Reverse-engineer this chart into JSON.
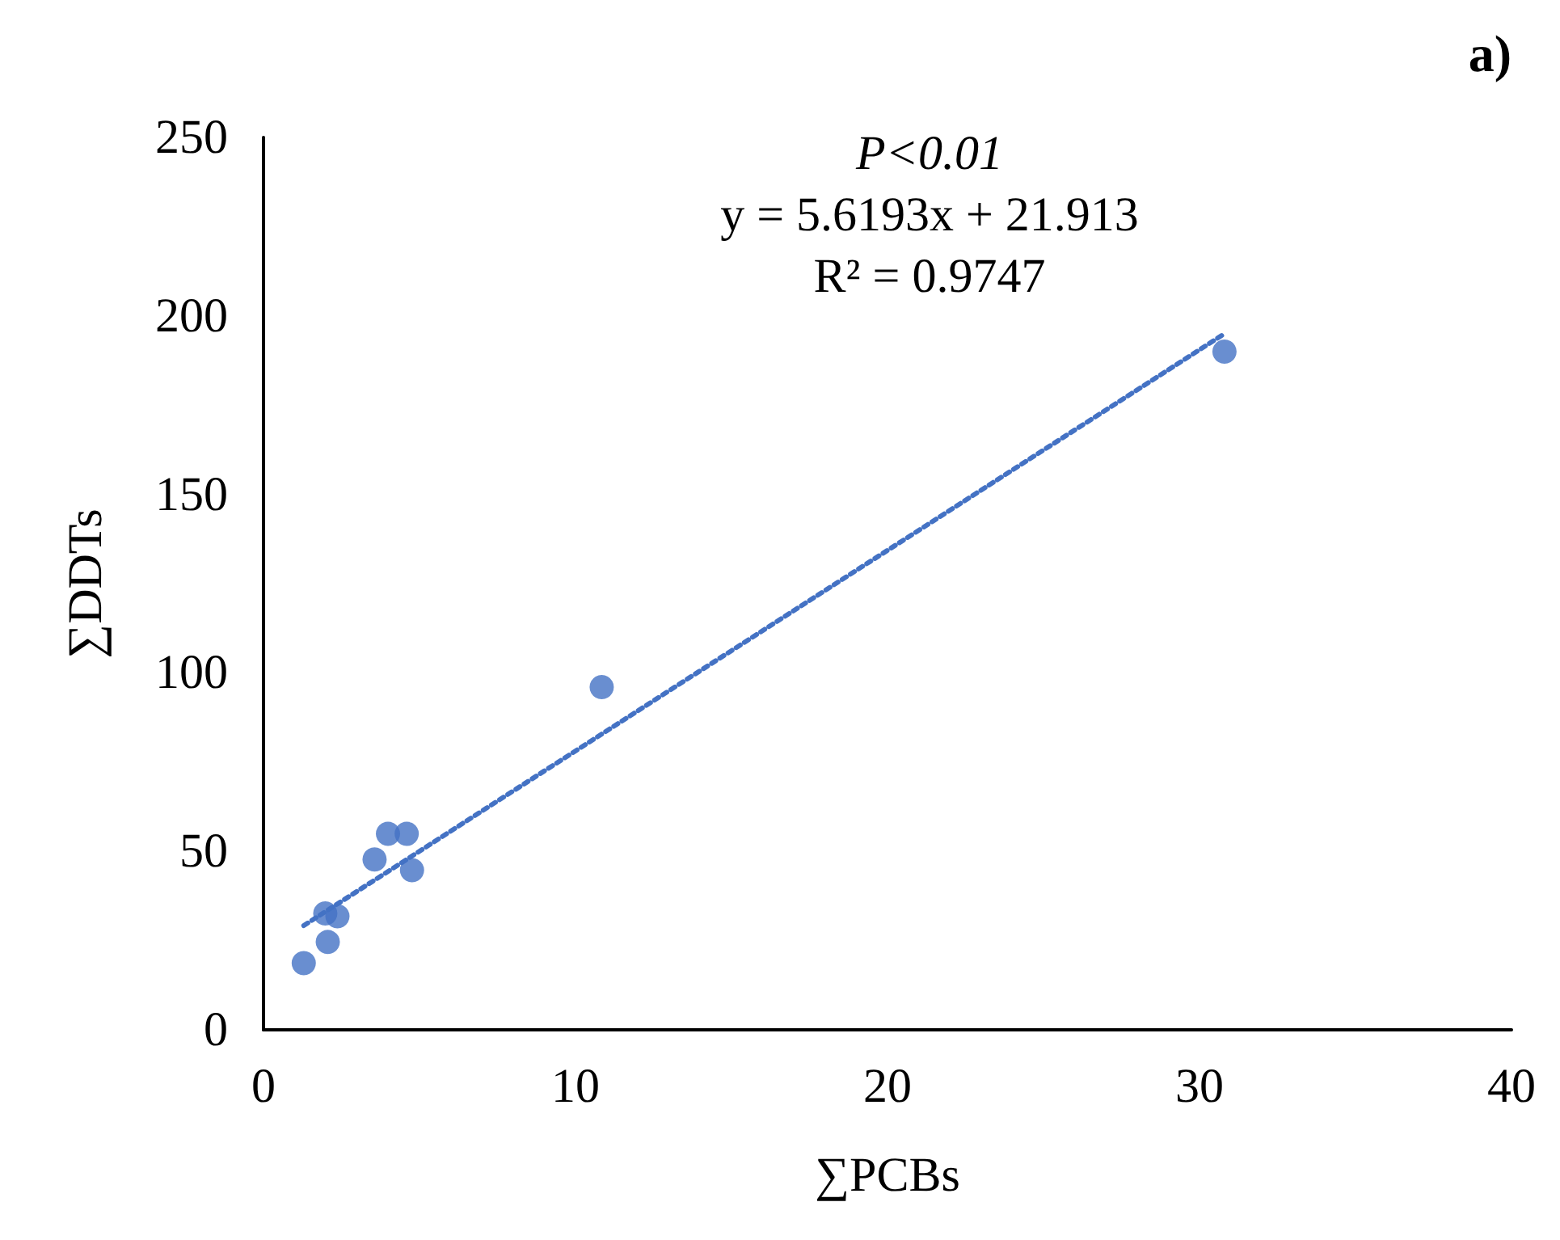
{
  "chart_data": {
    "type": "scatter",
    "title": "a)",
    "xlabel": "∑PCBs",
    "ylabel": "∑DDTs",
    "annotations": [
      "P<0.01",
      "y = 5.6193x + 21.913",
      "R² = 0.9747"
    ],
    "xlim": [
      0,
      40
    ],
    "xticks": [
      0,
      10,
      20,
      30,
      40
    ],
    "ylim": [
      0,
      250
    ],
    "yticks": [
      0,
      50,
      100,
      150,
      200,
      250
    ],
    "grid": false,
    "marker": "circle",
    "series": [
      {
        "color": "#4472c4",
        "x": [
          1.29,
          2.06,
          1.98,
          2.37,
          3.56,
          3.99,
          4.59,
          4.76,
          10.84,
          30.8
        ],
        "values": [
          18.7,
          24.6,
          32.6,
          31.8,
          47.7,
          54.9,
          54.9,
          44.7,
          96.0,
          190.0
        ]
      },
      {
        "type": "line",
        "color": "#4472c4",
        "line_style": "dotted",
        "marker": "none",
        "x": [
          1.29,
          30.8
        ],
        "values": [
          29.2,
          195.0
        ]
      }
    ]
  }
}
